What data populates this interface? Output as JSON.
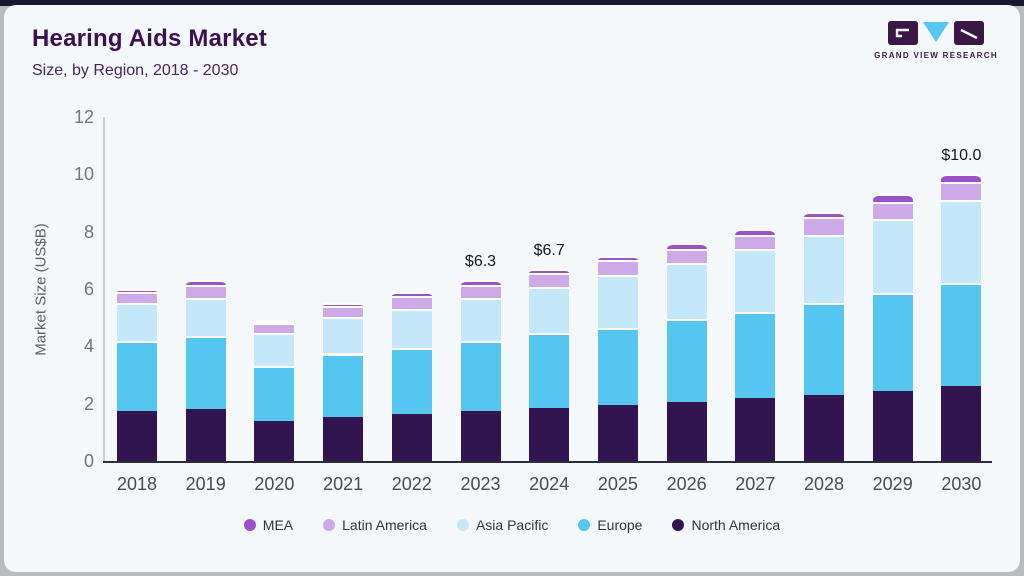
{
  "header": {
    "title": "Hearing Aids Market",
    "subtitle": "Size, by Region, 2018 - 2030"
  },
  "logo": {
    "text": "GRAND VIEW RESEARCH",
    "block_color": "#3a1744",
    "triangle_color": "#55c6f0"
  },
  "chart_data": {
    "type": "bar",
    "stacked": true,
    "title": "Hearing Aids Market Size, by Region, 2018 - 2030",
    "xlabel": "",
    "ylabel": "Market Size (US$B)",
    "ylim": [
      0,
      12
    ],
    "yticks": [
      0,
      2,
      4,
      6,
      8,
      10,
      12
    ],
    "grid": false,
    "legend_position": "bottom",
    "categories": [
      "2018",
      "2019",
      "2020",
      "2021",
      "2022",
      "2023",
      "2024",
      "2025",
      "2026",
      "2027",
      "2028",
      "2029",
      "2030"
    ],
    "series": [
      {
        "name": "North America",
        "color": "#321450",
        "values": [
          1.75,
          1.8,
          1.4,
          1.55,
          1.65,
          1.75,
          1.85,
          1.95,
          2.05,
          2.2,
          2.3,
          2.45,
          2.6
        ]
      },
      {
        "name": "Europe",
        "color": "#55c6f0",
        "values": [
          2.45,
          2.55,
          1.9,
          2.2,
          2.3,
          2.45,
          2.6,
          2.7,
          2.9,
          3.0,
          3.2,
          3.4,
          3.6
        ]
      },
      {
        "name": "Asia Pacific",
        "color": "#c4e8fa",
        "values": [
          1.3,
          1.35,
          1.15,
          1.26,
          1.35,
          1.5,
          1.63,
          1.85,
          1.95,
          2.2,
          2.4,
          2.6,
          2.9
        ]
      },
      {
        "name": "Latin America",
        "color": "#cda9e8",
        "values": [
          0.4,
          0.45,
          0.35,
          0.4,
          0.45,
          0.45,
          0.47,
          0.5,
          0.5,
          0.5,
          0.6,
          0.6,
          0.63
        ]
      },
      {
        "name": "MEA",
        "color": "#9c51c9",
        "values": [
          0.1,
          0.15,
          0.1,
          0.09,
          0.15,
          0.15,
          0.15,
          0.15,
          0.2,
          0.2,
          0.2,
          0.25,
          0.27
        ]
      }
    ],
    "totals": [
      6.0,
      6.3,
      4.9,
      5.5,
      5.9,
      6.3,
      6.7,
      7.15,
      7.6,
      8.1,
      8.7,
      9.3,
      10.0
    ],
    "bar_labels": {
      "2023": "$6.3",
      "2024": "$6.7",
      "2030": "$10.0"
    },
    "legend_order": [
      "MEA",
      "Latin America",
      "Asia Pacific",
      "Europe",
      "North America"
    ]
  }
}
